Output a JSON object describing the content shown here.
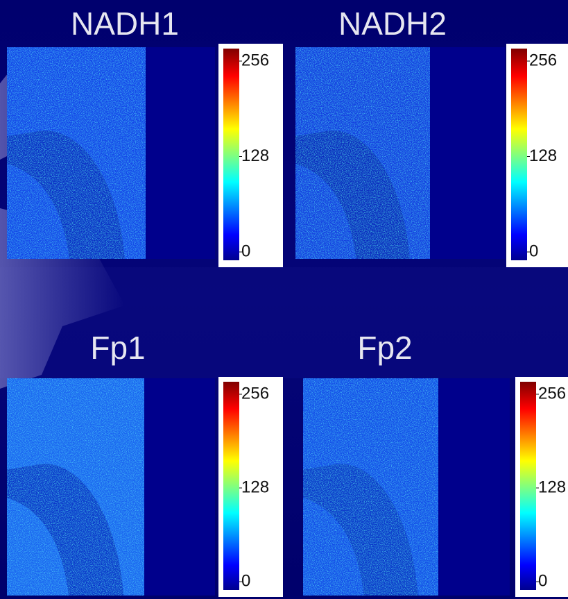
{
  "panels": [
    {
      "title": "NADH1",
      "colorbar": {
        "lim": [
          0,
          256
        ],
        "ticks": [
          0,
          128,
          256
        ]
      }
    },
    {
      "title": "NADH2",
      "colorbar": {
        "lim": [
          0,
          256
        ],
        "ticks": [
          0,
          128,
          256
        ]
      }
    },
    {
      "title": "Fp1",
      "colorbar": {
        "lim": [
          0,
          256
        ],
        "ticks": [
          0,
          128,
          256
        ]
      }
    },
    {
      "title": "Fp2",
      "colorbar": {
        "lim": [
          0,
          256
        ],
        "ticks": [
          0,
          128,
          256
        ]
      }
    }
  ]
}
